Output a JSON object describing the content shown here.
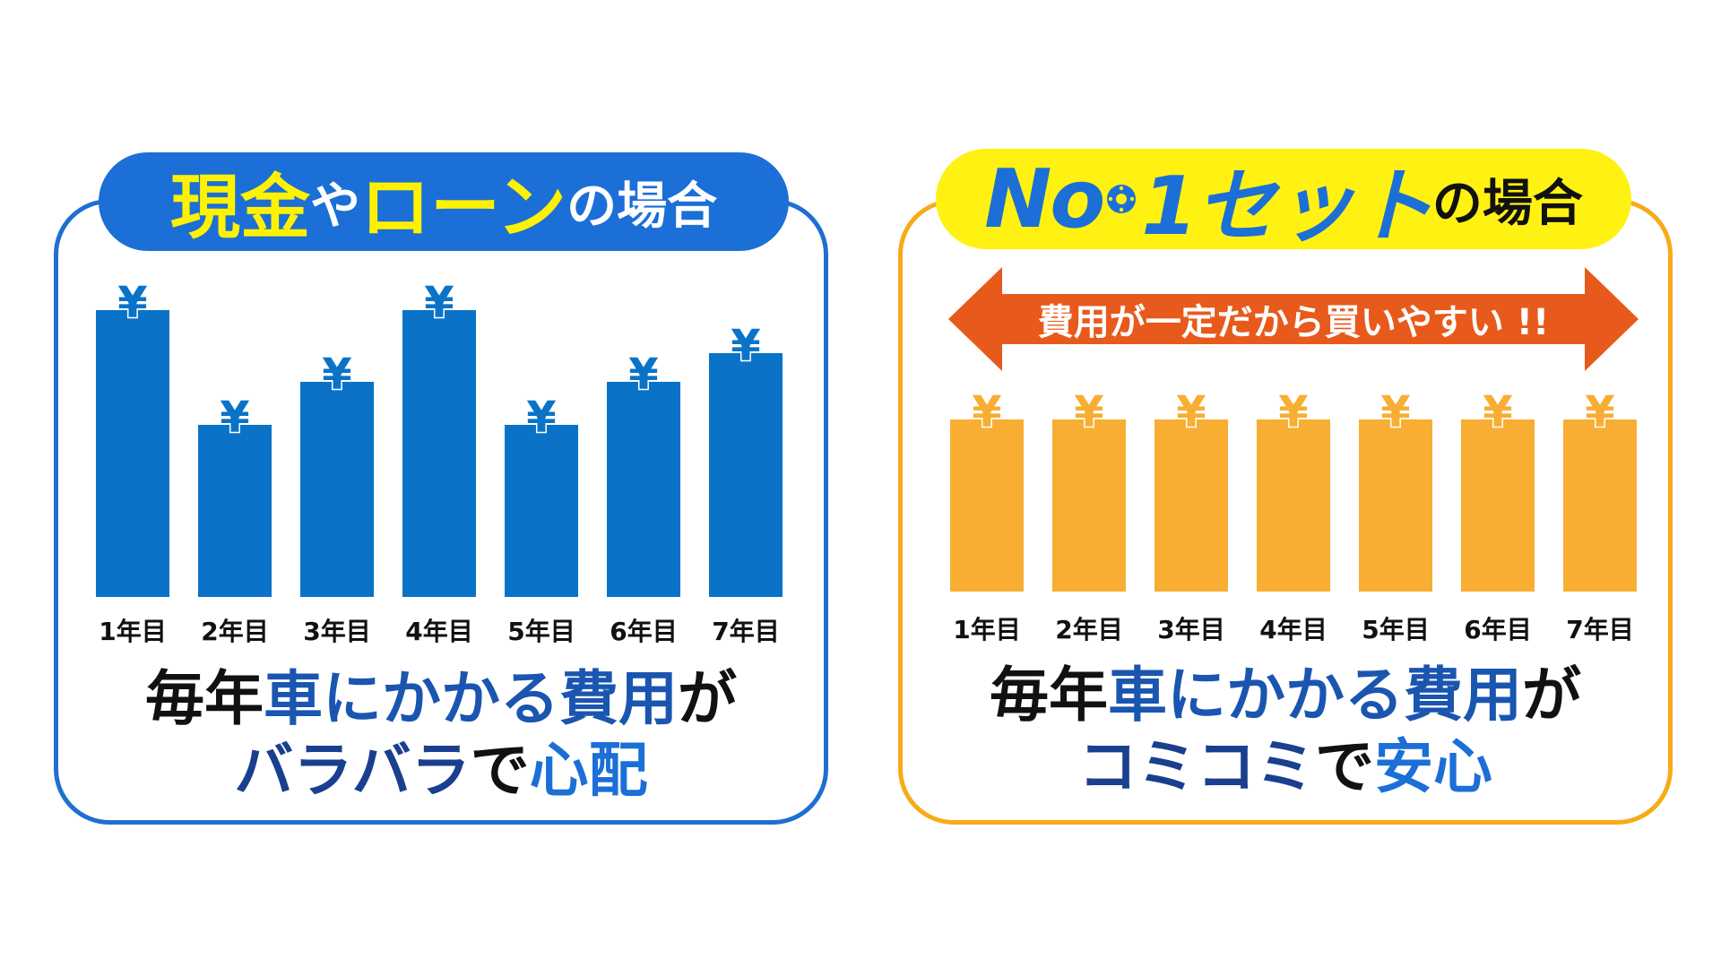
{
  "left": {
    "title": {
      "part1": "現金",
      "part2": "や",
      "part3": "ローン",
      "part4": "の場合"
    },
    "caption_line1": {
      "a": "毎年",
      "b": "車にかかる費用",
      "c": "が"
    },
    "caption_line2": {
      "a": "バラバラ",
      "b": "で",
      "c": "心配"
    }
  },
  "right": {
    "title": {
      "part1": "No",
      "part2": "1セット",
      "part3": "の場合"
    },
    "banner": "費用が一定だから買いやすい !!",
    "caption_line1": {
      "a": "毎年",
      "b": "車にかかる費用",
      "c": "が"
    },
    "caption_line2": {
      "a": "コミコミ",
      "b": "で",
      "c": "安心"
    }
  },
  "colors": {
    "left_bar": "#0a73c8",
    "left_yen": "#0a73c8",
    "right_bar": "#f7ae33",
    "right_yen": "#f7ae33",
    "arrow": "#e85a1b"
  },
  "chart_data": [
    {
      "type": "bar",
      "categories": [
        "1年目",
        "2年目",
        "3年目",
        "4年目",
        "5年目",
        "6年目",
        "7年目"
      ],
      "values": [
        10,
        6,
        7.5,
        10,
        6,
        7.5,
        8.5
      ],
      "ylim": [
        0,
        10
      ],
      "marker": "¥",
      "grid": false
    },
    {
      "type": "bar",
      "categories": [
        "1年目",
        "2年目",
        "3年目",
        "4年目",
        "5年目",
        "6年目",
        "7年目"
      ],
      "values": [
        6,
        6,
        6,
        6,
        6,
        6,
        6
      ],
      "ylim": [
        0,
        10
      ],
      "marker": "¥",
      "grid": false
    }
  ]
}
